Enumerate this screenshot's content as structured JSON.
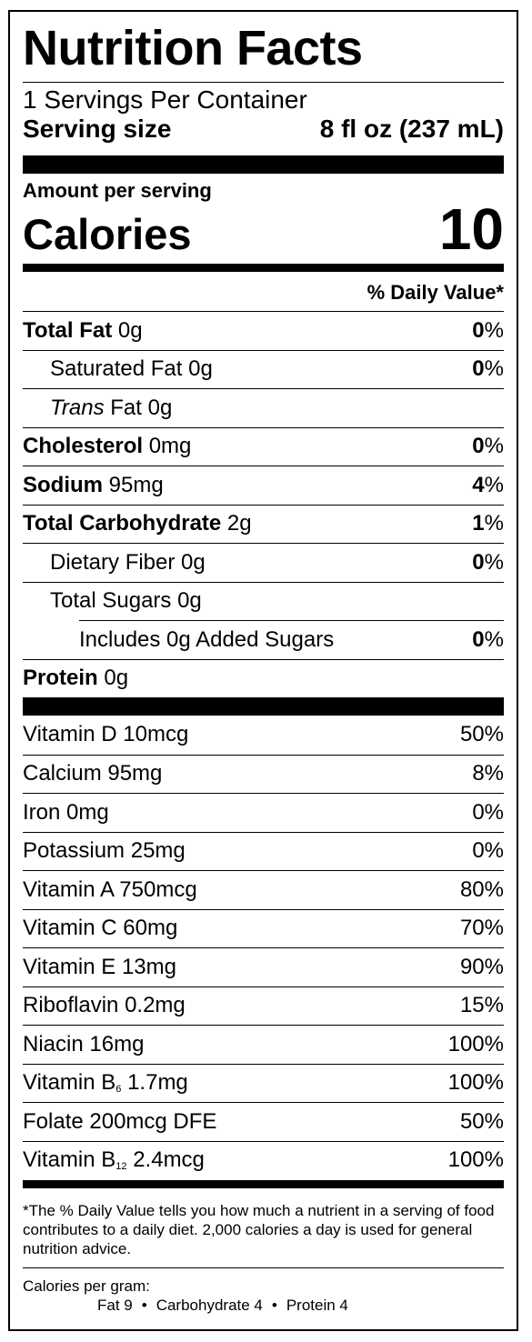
{
  "title": "Nutrition Facts",
  "servings_per_container": "1 Servings Per Container",
  "serving_size": {
    "label": "Serving size",
    "value": "8 fl oz (237 mL)"
  },
  "amount_per_serving": "Amount per serving",
  "calories": {
    "label": "Calories",
    "value": "10"
  },
  "daily_value_header": "% Daily Value*",
  "nutrients": [
    {
      "name": "Total Fat",
      "amount": "0g",
      "pct": "0%",
      "bold": true,
      "indent": 0
    },
    {
      "name": "Saturated Fat",
      "amount": "0g",
      "pct": "0%",
      "bold": false,
      "indent": 1
    },
    {
      "name": "Trans",
      "name_suffix": "Fat",
      "amount": "0g",
      "pct": "",
      "bold": false,
      "indent": 1
    },
    {
      "name": "Cholesterol",
      "amount": "0mg",
      "pct": "0%",
      "bold": true,
      "indent": 0
    },
    {
      "name": "Sodium",
      "amount": "95mg",
      "pct": "4%",
      "bold": true,
      "indent": 0
    },
    {
      "name": "Total Carbohydrate",
      "amount": "2g",
      "pct": "1%",
      "bold": true,
      "indent": 0
    },
    {
      "name": "Dietary Fiber",
      "amount": "0g",
      "pct": "0%",
      "bold": false,
      "indent": 1
    },
    {
      "name": "Total Sugars",
      "amount": "0g",
      "pct": "",
      "bold": false,
      "indent": 1
    },
    {
      "name": "Includes 0g Added Sugars",
      "amount": "",
      "pct": "0%",
      "bold": false,
      "indent": 2
    },
    {
      "name": "Protein",
      "amount": "0g",
      "pct": "",
      "bold": true,
      "indent": 0
    }
  ],
  "vitamins": [
    {
      "name": "Vitamin D",
      "amount": "10mcg",
      "pct": "50%"
    },
    {
      "name": "Calcium",
      "amount": "95mg",
      "pct": "8%"
    },
    {
      "name": "Iron",
      "amount": "0mg",
      "pct": "0%"
    },
    {
      "name": "Potassium",
      "amount": "25mg",
      "pct": "0%"
    },
    {
      "name": "Vitamin A",
      "amount": "750mcg",
      "pct": "80%"
    },
    {
      "name": "Vitamin C",
      "amount": "60mg",
      "pct": "70%"
    },
    {
      "name": "Vitamin E",
      "amount": "13mg",
      "pct": "90%"
    },
    {
      "name": "Riboflavin",
      "amount": "0.2mg",
      "pct": "15%"
    },
    {
      "name": "Niacin",
      "amount": "16mg",
      "pct": "100%"
    },
    {
      "name": "Vitamin B",
      "sub": "6",
      "amount": "1.7mg",
      "pct": "100%"
    },
    {
      "name": "Folate",
      "amount": "200mcg DFE",
      "pct": "50%"
    },
    {
      "name": "Vitamin B",
      "sub": "12",
      "amount": "2.4mcg",
      "pct": "100%"
    }
  ],
  "footnote": "*The % Daily Value tells you how much a nutrient in a serving of food contributes to a daily diet. 2,000 calories a day is used for general nutrition advice.",
  "calories_per_gram": {
    "label": "Calories per gram:",
    "fat": "Fat 9",
    "carbohydrate": "Carbohydrate 4",
    "protein": "Protein 4",
    "separator": "•"
  }
}
